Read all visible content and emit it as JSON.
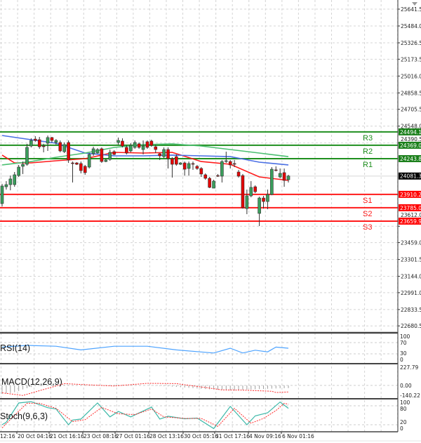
{
  "chart_data": [
    {
      "type": "candlestick",
      "price_axis": {
        "ticks": [
          "25641.5",
          "25484.0",
          "25326.5",
          "25173.5",
          "25016.0",
          "24858.5",
          "24705.5",
          "24548.0",
          "24390.5",
          "23612.0",
          "23459.0",
          "23301.5",
          "23144.0",
          "22991.0",
          "22833.5",
          "22680.5"
        ],
        "range": [
          22680.5,
          25641.5
        ]
      },
      "time_axis": {
        "ticks": [
          "12:16",
          "20 Oct 04:16",
          "21 Oct 16:16",
          "23 Oct 08:16",
          "27 Oct 01:16",
          "28 Oct 13:16",
          "30 Oct 05:16",
          "31 Oct 17:16",
          "4 Nov 09:16",
          "6 Nov 01:16"
        ]
      },
      "grid": true,
      "candle_format": [
        "open",
        "high",
        "low",
        "close"
      ],
      "candles": [
        [
          23824,
          24008,
          23797,
          23988
        ],
        [
          23981,
          24034,
          23955,
          24001
        ],
        [
          24001,
          24086,
          23948,
          24054
        ],
        [
          24001,
          24119,
          23981,
          24093
        ],
        [
          24086,
          24185,
          24073,
          24165
        ],
        [
          24172,
          24217,
          24100,
          24191
        ],
        [
          24191,
          24382,
          24178,
          24349
        ],
        [
          24362,
          24434,
          24349,
          24414
        ],
        [
          24427,
          24454,
          24402,
          24414
        ],
        [
          24421,
          24447,
          24336,
          24355
        ],
        [
          24362,
          24382,
          24303,
          24360
        ],
        [
          24388,
          24460,
          24316,
          24441
        ],
        [
          24441,
          24447,
          24395,
          24414
        ],
        [
          24395,
          24427,
          24375,
          24414
        ],
        [
          24395,
          24414,
          24303,
          24316
        ],
        [
          24309,
          24395,
          24296,
          24375
        ],
        [
          24395,
          24414,
          24204,
          24231
        ],
        [
          24204,
          24217,
          24021,
          24200
        ],
        [
          24204,
          24211,
          24185,
          24191
        ],
        [
          24198,
          24217,
          24106,
          24132
        ],
        [
          24172,
          24185,
          24093,
          24113
        ],
        [
          24165,
          24296,
          24152,
          24283
        ],
        [
          24290,
          24355,
          24270,
          24336
        ],
        [
          24296,
          24342,
          24290,
          24329
        ],
        [
          24336,
          24349,
          24204,
          24217
        ],
        [
          24217,
          24244,
          24211,
          24231
        ],
        [
          24237,
          24329,
          24224,
          24303
        ],
        [
          24309,
          24323,
          24277,
          24283
        ],
        [
          24395,
          24441,
          24375,
          24414
        ],
        [
          24408,
          24434,
          24349,
          24362
        ],
        [
          24349,
          24368,
          24283,
          24296
        ],
        [
          24316,
          24388,
          24303,
          24368
        ],
        [
          24349,
          24414,
          24336,
          24395
        ],
        [
          24382,
          24395,
          24336,
          24349
        ],
        [
          24329,
          24414,
          24283,
          24362
        ],
        [
          24402,
          24414,
          24336,
          24349
        ],
        [
          24408,
          24421,
          24355,
          24368
        ],
        [
          24355,
          24375,
          24296,
          24329
        ],
        [
          24290,
          24296,
          24231,
          24270
        ],
        [
          24263,
          24349,
          24250,
          24329
        ],
        [
          24329,
          24349,
          24152,
          24244
        ],
        [
          24244,
          24257,
          24067,
          24191
        ],
        [
          24263,
          24283,
          24178,
          24191
        ],
        [
          24191,
          24211,
          24185,
          24204
        ],
        [
          24204,
          24217,
          24086,
          24145
        ],
        [
          24152,
          24217,
          24086,
          24198
        ],
        [
          24198,
          24217,
          24139,
          24196
        ],
        [
          24172,
          24185,
          24139,
          24152
        ],
        [
          24152,
          24165,
          24073,
          24100
        ],
        [
          24093,
          24106,
          24047,
          24060
        ],
        [
          24060,
          24073,
          23968,
          23975
        ],
        [
          23968,
          24047,
          23968,
          24034
        ],
        [
          24086,
          24100,
          24073,
          24084
        ],
        [
          24080,
          24231,
          24021,
          24217
        ],
        [
          24220,
          24309,
          24204,
          24224
        ],
        [
          24217,
          24231,
          24152,
          24185
        ],
        [
          24198,
          24231,
          24165,
          24196
        ],
        [
          24119,
          24139,
          24067,
          24080
        ],
        [
          24086,
          24100,
          23777,
          23784
        ],
        [
          23777,
          23955,
          23725,
          23896
        ],
        [
          23896,
          24034,
          23883,
          23975
        ],
        [
          23981,
          23994,
          23922,
          23935
        ],
        [
          23732,
          23889,
          23614,
          23876
        ],
        [
          23876,
          23896,
          23777,
          23843
        ],
        [
          23843,
          23955,
          23771,
          23909
        ],
        [
          23909,
          24165,
          23902,
          24145
        ],
        [
          24139,
          24172,
          24125,
          24137
        ],
        [
          24073,
          24152,
          24060,
          24106
        ],
        [
          24113,
          24152,
          23981,
          24040
        ],
        [
          24047,
          24093,
          24021,
          24081
        ]
      ],
      "moving_averages": [
        {
          "color": "#ff1a1a",
          "points": [
            [
              0,
              24277
            ],
            [
              3,
              24204
            ],
            [
              7,
              24204
            ],
            [
              13,
              24224
            ],
            [
              20,
              24244
            ],
            [
              27,
              24303
            ],
            [
              34,
              24296
            ],
            [
              41,
              24303
            ],
            [
              48,
              24217
            ],
            [
              55,
              24191
            ],
            [
              62,
              24073
            ],
            [
              69,
              24040
            ]
          ]
        },
        {
          "color": "#4a6fe3",
          "points": [
            [
              0,
              24460
            ],
            [
              7,
              24421
            ],
            [
              13,
              24388
            ],
            [
              20,
              24296
            ],
            [
              27,
              24270
            ],
            [
              34,
              24270
            ],
            [
              41,
              24277
            ],
            [
              48,
              24270
            ],
            [
              55,
              24263
            ],
            [
              62,
              24211
            ],
            [
              69,
              24185
            ]
          ]
        },
        {
          "color": "#4cbf72",
          "points": [
            [
              0,
              24185
            ],
            [
              7,
              24217
            ],
            [
              13,
              24257
            ],
            [
              20,
              24296
            ],
            [
              27,
              24349
            ],
            [
              34,
              24375
            ],
            [
              41,
              24382
            ],
            [
              48,
              24362
            ],
            [
              55,
              24329
            ],
            [
              62,
              24296
            ],
            [
              69,
              24263
            ]
          ]
        }
      ],
      "levels": [
        {
          "name": "R3",
          "value": "24494.1",
          "color": "#1f8f1f"
        },
        {
          "name": "R2",
          "value": "24369.0",
          "color": "#1f8f1f"
        },
        {
          "name": "R1",
          "value": "24243.8",
          "color": "#1f8f1f"
        },
        {
          "name": "S1",
          "value": "23910.2",
          "color": "#ff1a1a"
        },
        {
          "name": "S2",
          "value": "23785.0",
          "color": "#ff1a1a"
        },
        {
          "name": "S3",
          "value": "23659.9",
          "color": "#ff1a1a"
        }
      ],
      "current_price": "24081.3",
      "colors": {
        "up": "#3a9e5c",
        "down": "#e60000",
        "outline": "#333333"
      }
    },
    {
      "type": "line",
      "label": "RSI(14)",
      "ticks": [
        "100",
        "70",
        "30",
        "0"
      ],
      "ylim": [
        0,
        100
      ],
      "color": "#4da3ff",
      "points": [
        [
          0,
          54
        ],
        [
          6,
          60
        ],
        [
          13,
          57
        ],
        [
          19,
          44
        ],
        [
          27,
          57
        ],
        [
          35,
          57
        ],
        [
          42,
          44
        ],
        [
          51,
          33
        ],
        [
          55,
          50
        ],
        [
          58,
          33
        ],
        [
          61,
          43
        ],
        [
          64,
          37
        ],
        [
          66,
          54
        ],
        [
          69,
          50
        ]
      ]
    },
    {
      "type": "bar",
      "label": "MACD(12,26,9)",
      "ticks": [
        "227.79",
        "0.00",
        "-140.22"
      ],
      "ylim": [
        -140.22,
        227.79
      ],
      "histogram": [
        -105,
        -100,
        -95,
        -85,
        -70,
        -50,
        -35,
        -20,
        -8,
        0,
        6,
        8,
        10,
        10,
        9,
        8,
        6,
        5,
        4,
        5,
        6,
        6,
        5,
        4,
        3,
        4,
        5,
        6,
        7,
        6,
        5,
        4,
        3,
        2,
        1,
        0,
        -2,
        -4,
        -6,
        -8,
        -10,
        -14,
        -18,
        -22,
        -26,
        -30,
        -34,
        -38,
        -42,
        -45,
        -48,
        -50,
        -52,
        -55,
        -58,
        -62,
        -65,
        -60,
        -55,
        -52,
        -50,
        -48,
        -45,
        -44,
        -42,
        -40,
        -38,
        -36,
        -35,
        -34
      ],
      "signal": [
        [
          0,
          -92
        ],
        [
          5,
          -125
        ],
        [
          9,
          -66
        ],
        [
          15,
          23
        ],
        [
          21,
          7
        ],
        [
          27,
          -7
        ],
        [
          35,
          26
        ],
        [
          42,
          23
        ],
        [
          50,
          -33
        ],
        [
          53,
          -56
        ],
        [
          58,
          -59
        ],
        [
          65,
          -73
        ],
        [
          66,
          -89
        ],
        [
          69,
          -82
        ]
      ],
      "colors": {
        "histogram": "#a0a0a0",
        "signal": "#ff2a2a"
      }
    },
    {
      "type": "line",
      "label": "Stoch(9,6,3)",
      "ticks": [
        "100",
        "80",
        "20",
        "0"
      ],
      "ylim": [
        0,
        100
      ],
      "main": [
        [
          0,
          20
        ],
        [
          1,
          28
        ],
        [
          4,
          89
        ],
        [
          7,
          93
        ],
        [
          11,
          74
        ],
        [
          13,
          70
        ],
        [
          16,
          20
        ],
        [
          17,
          35
        ],
        [
          19,
          38
        ],
        [
          23,
          89
        ],
        [
          26,
          45
        ],
        [
          28,
          62
        ],
        [
          31,
          45
        ],
        [
          36,
          76
        ],
        [
          38,
          38
        ],
        [
          40,
          47
        ],
        [
          44,
          39
        ],
        [
          47,
          41
        ],
        [
          51,
          8
        ],
        [
          55,
          78
        ],
        [
          59,
          20
        ],
        [
          61,
          48
        ],
        [
          64,
          58
        ],
        [
          67,
          92
        ],
        [
          69,
          72
        ]
      ],
      "signal": [
        [
          0,
          10
        ],
        [
          3,
          50
        ],
        [
          6,
          88
        ],
        [
          9,
          88
        ],
        [
          13,
          72
        ],
        [
          17,
          30
        ],
        [
          20,
          36
        ],
        [
          24,
          75
        ],
        [
          28,
          55
        ],
        [
          32,
          52
        ],
        [
          36,
          70
        ],
        [
          39,
          45
        ],
        [
          44,
          40
        ],
        [
          48,
          40
        ],
        [
          52,
          15
        ],
        [
          56,
          72
        ],
        [
          60,
          25
        ],
        [
          63,
          40
        ],
        [
          66,
          65
        ],
        [
          68,
          88
        ],
        [
          69,
          85
        ]
      ],
      "colors": {
        "main": "#3cb8a8",
        "signal": "#ff2a2a"
      }
    }
  ]
}
